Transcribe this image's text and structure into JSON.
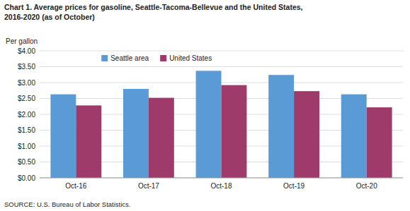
{
  "chart_data": {
    "type": "bar",
    "title": "Chart 1. Average prices for gasoline, Seattle-Tacoma-Bellevue and the United States,",
    "subtitle": "2016-2020  (as of October)",
    "y_label": "Per gallon",
    "annotations": [
      "SOURCE: U.S. Bureau of Labor Statistics."
    ],
    "categories": [
      "Oct-16",
      "Oct-17",
      "Oct-18",
      "Oct-19",
      "Oct-20"
    ],
    "series": [
      {
        "name": "Seattle area",
        "color": "#5B9BD5",
        "values": [
          2.63,
          2.8,
          3.37,
          3.24,
          2.63
        ]
      },
      {
        "name": "United States",
        "color": "#9E3B6B",
        "values": [
          2.28,
          2.52,
          2.92,
          2.73,
          2.22
        ]
      }
    ],
    "ylim": [
      0,
      4.0
    ],
    "yticks": [
      {
        "value": 0.0,
        "label": "$0.00"
      },
      {
        "value": 0.5,
        "label": "$0.50"
      },
      {
        "value": 1.0,
        "label": "$1.00"
      },
      {
        "value": 1.5,
        "label": "$1.50"
      },
      {
        "value": 2.0,
        "label": "$2.00"
      },
      {
        "value": 2.5,
        "label": "$2.50"
      },
      {
        "value": 3.0,
        "label": "$3.00"
      },
      {
        "value": 3.5,
        "label": "$3.50"
      },
      {
        "value": 4.0,
        "label": "$4.00"
      }
    ],
    "grid": true,
    "legend": "upper left"
  }
}
